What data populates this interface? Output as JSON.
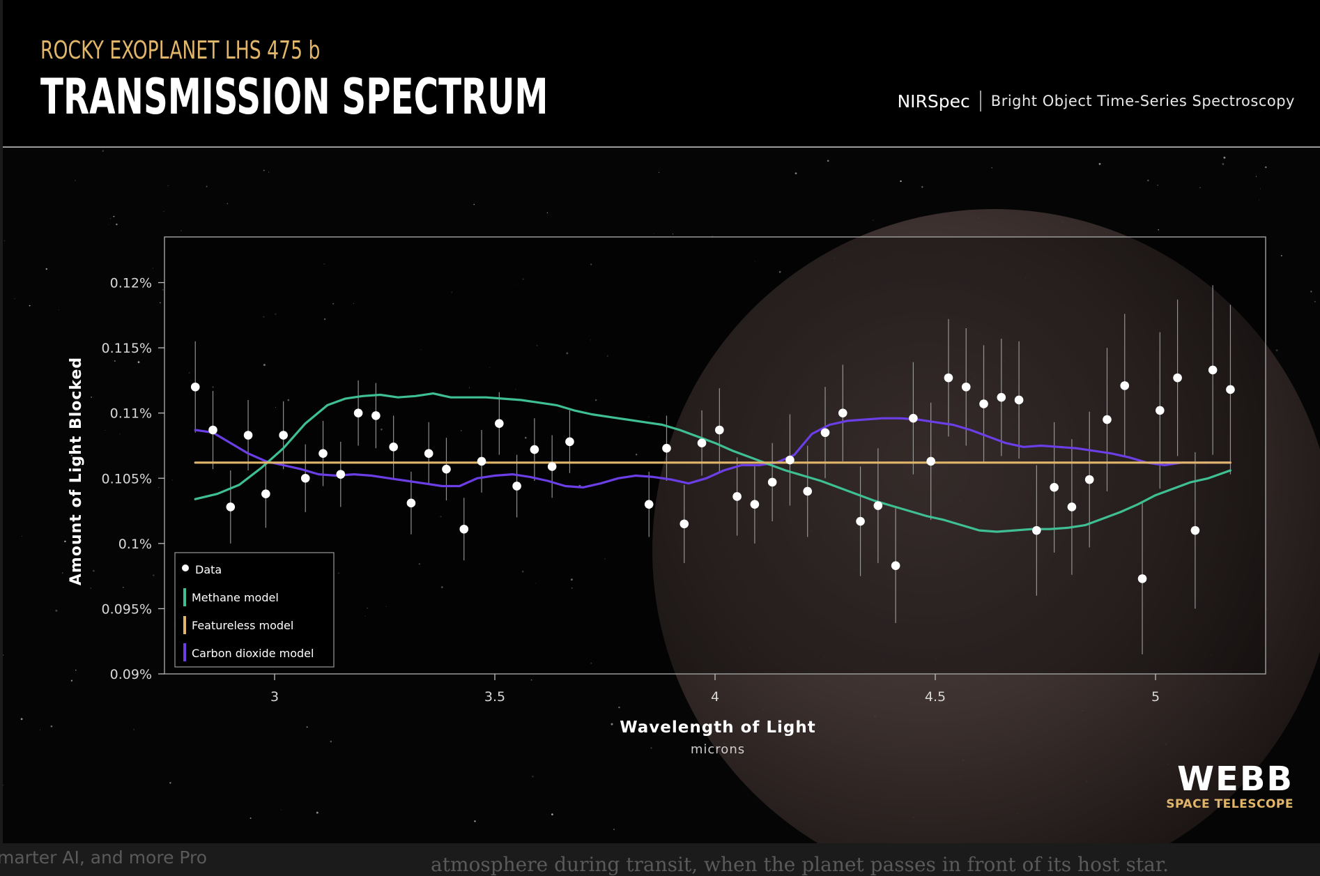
{
  "header": {
    "subtitle": "ROCKY EXOPLANET LHS 475 b",
    "title": "TRANSMISSION SPECTRUM",
    "instrument": "NIRSpec",
    "mode": "Bright Object Time-Series Spectroscopy"
  },
  "branding": {
    "word": "WEBB",
    "sub": "SPACE TELESCOPE"
  },
  "background_text": {
    "left": "marter AI, and more Pro",
    "right": "atmosphere during transit, when the planet passes in front of its host star."
  },
  "colors": {
    "methane": "#3fbf94",
    "featureless": "#e2b66a",
    "co2": "#6b3ee6",
    "data": "#ffffff",
    "title_gold": "#e2b66a"
  },
  "chart_data": {
    "type": "scatter",
    "title": "TRANSMISSION SPECTRUM",
    "xlabel": "Wavelength of Light",
    "xunit": "microns",
    "ylabel": "Amount of Light Blocked",
    "xlim": [
      2.75,
      5.25
    ],
    "ylim": [
      0.09,
      0.1235
    ],
    "xticks": [
      3,
      3.5,
      4,
      4.5,
      5
    ],
    "xtick_labels": [
      "3",
      "3.5",
      "4",
      "4.5",
      "5"
    ],
    "yticks": [
      0.09,
      0.095,
      0.1,
      0.105,
      0.11,
      0.115,
      0.12
    ],
    "ytick_labels": [
      "0.09%",
      "0.095%",
      "0.1%",
      "0.105%",
      "0.11%",
      "0.115%",
      "0.12%"
    ],
    "grid": false,
    "legend_position": "bottom-left",
    "legend": [
      "Data",
      "Methane model",
      "Featureless model",
      "Carbon dioxide model"
    ],
    "data_points": [
      {
        "x": 2.82,
        "y": 0.112,
        "err": 0.0035
      },
      {
        "x": 2.86,
        "y": 0.1087,
        "err": 0.003
      },
      {
        "x": 2.9,
        "y": 0.1028,
        "err": 0.0028
      },
      {
        "x": 2.94,
        "y": 0.1083,
        "err": 0.0027
      },
      {
        "x": 2.98,
        "y": 0.1038,
        "err": 0.0026
      },
      {
        "x": 3.02,
        "y": 0.1083,
        "err": 0.0026
      },
      {
        "x": 3.07,
        "y": 0.105,
        "err": 0.0026
      },
      {
        "x": 3.11,
        "y": 0.1069,
        "err": 0.0025
      },
      {
        "x": 3.15,
        "y": 0.1053,
        "err": 0.0025
      },
      {
        "x": 3.19,
        "y": 0.11,
        "err": 0.0025
      },
      {
        "x": 3.23,
        "y": 0.1098,
        "err": 0.0025
      },
      {
        "x": 3.27,
        "y": 0.1074,
        "err": 0.0024
      },
      {
        "x": 3.31,
        "y": 0.1031,
        "err": 0.0024
      },
      {
        "x": 3.35,
        "y": 0.1069,
        "err": 0.0024
      },
      {
        "x": 3.39,
        "y": 0.1057,
        "err": 0.0024
      },
      {
        "x": 3.43,
        "y": 0.1011,
        "err": 0.0024
      },
      {
        "x": 3.47,
        "y": 0.1063,
        "err": 0.0024
      },
      {
        "x": 3.51,
        "y": 0.1092,
        "err": 0.0024
      },
      {
        "x": 3.55,
        "y": 0.1044,
        "err": 0.0024
      },
      {
        "x": 3.59,
        "y": 0.1072,
        "err": 0.0024
      },
      {
        "x": 3.63,
        "y": 0.1059,
        "err": 0.0024
      },
      {
        "x": 3.67,
        "y": 0.1078,
        "err": 0.0024
      },
      {
        "x": 3.85,
        "y": 0.103,
        "err": 0.0025
      },
      {
        "x": 3.89,
        "y": 0.1073,
        "err": 0.0025
      },
      {
        "x": 3.93,
        "y": 0.1015,
        "err": 0.003
      },
      {
        "x": 3.97,
        "y": 0.1077,
        "err": 0.0025
      },
      {
        "x": 4.01,
        "y": 0.1087,
        "err": 0.0032
      },
      {
        "x": 4.05,
        "y": 0.1036,
        "err": 0.003
      },
      {
        "x": 4.09,
        "y": 0.103,
        "err": 0.003
      },
      {
        "x": 4.13,
        "y": 0.1047,
        "err": 0.003
      },
      {
        "x": 4.17,
        "y": 0.1064,
        "err": 0.0035
      },
      {
        "x": 4.21,
        "y": 0.104,
        "err": 0.0035
      },
      {
        "x": 4.25,
        "y": 0.1085,
        "err": 0.0035
      },
      {
        "x": 4.29,
        "y": 0.11,
        "err": 0.0037
      },
      {
        "x": 4.33,
        "y": 0.1017,
        "err": 0.0042
      },
      {
        "x": 4.37,
        "y": 0.1029,
        "err": 0.0044
      },
      {
        "x": 4.41,
        "y": 0.0983,
        "err": 0.0044
      },
      {
        "x": 4.45,
        "y": 0.1096,
        "err": 0.0043
      },
      {
        "x": 4.49,
        "y": 0.1063,
        "err": 0.0045
      },
      {
        "x": 4.53,
        "y": 0.1127,
        "err": 0.0045
      },
      {
        "x": 4.57,
        "y": 0.112,
        "err": 0.0045
      },
      {
        "x": 4.61,
        "y": 0.1107,
        "err": 0.0045
      },
      {
        "x": 4.65,
        "y": 0.1112,
        "err": 0.0045
      },
      {
        "x": 4.69,
        "y": 0.111,
        "err": 0.0045
      },
      {
        "x": 4.73,
        "y": 0.101,
        "err": 0.005
      },
      {
        "x": 4.77,
        "y": 0.1043,
        "err": 0.005
      },
      {
        "x": 4.81,
        "y": 0.1028,
        "err": 0.0052
      },
      {
        "x": 4.85,
        "y": 0.1049,
        "err": 0.0052
      },
      {
        "x": 4.89,
        "y": 0.1095,
        "err": 0.0055
      },
      {
        "x": 4.93,
        "y": 0.1121,
        "err": 0.0055
      },
      {
        "x": 4.97,
        "y": 0.0973,
        "err": 0.0058
      },
      {
        "x": 5.01,
        "y": 0.1102,
        "err": 0.006
      },
      {
        "x": 5.05,
        "y": 0.1127,
        "err": 0.006
      },
      {
        "x": 5.09,
        "y": 0.101,
        "err": 0.006
      },
      {
        "x": 5.13,
        "y": 0.1133,
        "err": 0.0065
      },
      {
        "x": 5.17,
        "y": 0.1118,
        "err": 0.0065
      }
    ],
    "series": [
      {
        "name": "Methane model",
        "x": [
          2.82,
          2.87,
          2.92,
          2.97,
          3.02,
          3.07,
          3.12,
          3.16,
          3.2,
          3.24,
          3.28,
          3.32,
          3.36,
          3.4,
          3.44,
          3.48,
          3.52,
          3.56,
          3.6,
          3.64,
          3.68,
          3.72,
          3.76,
          3.8,
          3.84,
          3.88,
          3.92,
          3.96,
          4.0,
          4.04,
          4.08,
          4.12,
          4.16,
          4.2,
          4.24,
          4.28,
          4.32,
          4.36,
          4.4,
          4.44,
          4.48,
          4.52,
          4.56,
          4.6,
          4.64,
          4.68,
          4.72,
          4.76,
          4.8,
          4.84,
          4.88,
          4.92,
          4.96,
          5.0,
          5.04,
          5.08,
          5.12,
          5.17
        ],
        "y": [
          0.1034,
          0.1038,
          0.1045,
          0.1058,
          0.1073,
          0.1092,
          0.1106,
          0.1111,
          0.1113,
          0.1114,
          0.1112,
          0.1113,
          0.1115,
          0.1112,
          0.1112,
          0.1112,
          0.1111,
          0.111,
          0.1108,
          0.1106,
          0.1102,
          0.1099,
          0.1097,
          0.1095,
          0.1093,
          0.1091,
          0.1087,
          0.1082,
          0.1077,
          0.1071,
          0.1066,
          0.1061,
          0.1056,
          0.1052,
          0.1048,
          0.1043,
          0.1038,
          0.1033,
          0.1029,
          0.1025,
          0.1021,
          0.1018,
          0.1014,
          0.101,
          0.1009,
          0.101,
          0.1011,
          0.1011,
          0.1012,
          0.1014,
          0.1019,
          0.1024,
          0.103,
          0.1037,
          0.1042,
          0.1047,
          0.105,
          0.1056
        ]
      },
      {
        "name": "Featureless model",
        "x": [
          2.82,
          5.17
        ],
        "y": [
          0.1062,
          0.1062
        ]
      },
      {
        "name": "Carbon dioxide model",
        "x": [
          2.82,
          2.86,
          2.9,
          2.94,
          2.98,
          3.02,
          3.06,
          3.1,
          3.14,
          3.18,
          3.22,
          3.26,
          3.3,
          3.34,
          3.38,
          3.42,
          3.46,
          3.5,
          3.54,
          3.58,
          3.62,
          3.66,
          3.7,
          3.74,
          3.78,
          3.82,
          3.86,
          3.9,
          3.94,
          3.98,
          4.02,
          4.06,
          4.1,
          4.14,
          4.18,
          4.22,
          4.26,
          4.3,
          4.34,
          4.38,
          4.42,
          4.46,
          4.5,
          4.54,
          4.58,
          4.62,
          4.66,
          4.7,
          4.74,
          4.78,
          4.82,
          4.86,
          4.9,
          4.94,
          4.98,
          5.02,
          5.06,
          5.1,
          5.17
        ],
        "y": [
          0.1087,
          0.1085,
          0.1077,
          0.1069,
          0.1063,
          0.106,
          0.1057,
          0.1053,
          0.1052,
          0.1053,
          0.1052,
          0.105,
          0.1048,
          0.1046,
          0.1044,
          0.1044,
          0.105,
          0.1052,
          0.1053,
          0.1051,
          0.1048,
          0.1044,
          0.1043,
          0.1046,
          0.105,
          0.1052,
          0.1051,
          0.1049,
          0.1046,
          0.105,
          0.1056,
          0.106,
          0.106,
          0.1062,
          0.1068,
          0.1084,
          0.1091,
          0.1094,
          0.1095,
          0.1096,
          0.1096,
          0.1095,
          0.1093,
          0.1091,
          0.1087,
          0.1082,
          0.1077,
          0.1074,
          0.1075,
          0.1074,
          0.1073,
          0.1071,
          0.1069,
          0.1066,
          0.1062,
          0.106,
          0.1062,
          0.1062,
          0.1062
        ]
      }
    ]
  }
}
